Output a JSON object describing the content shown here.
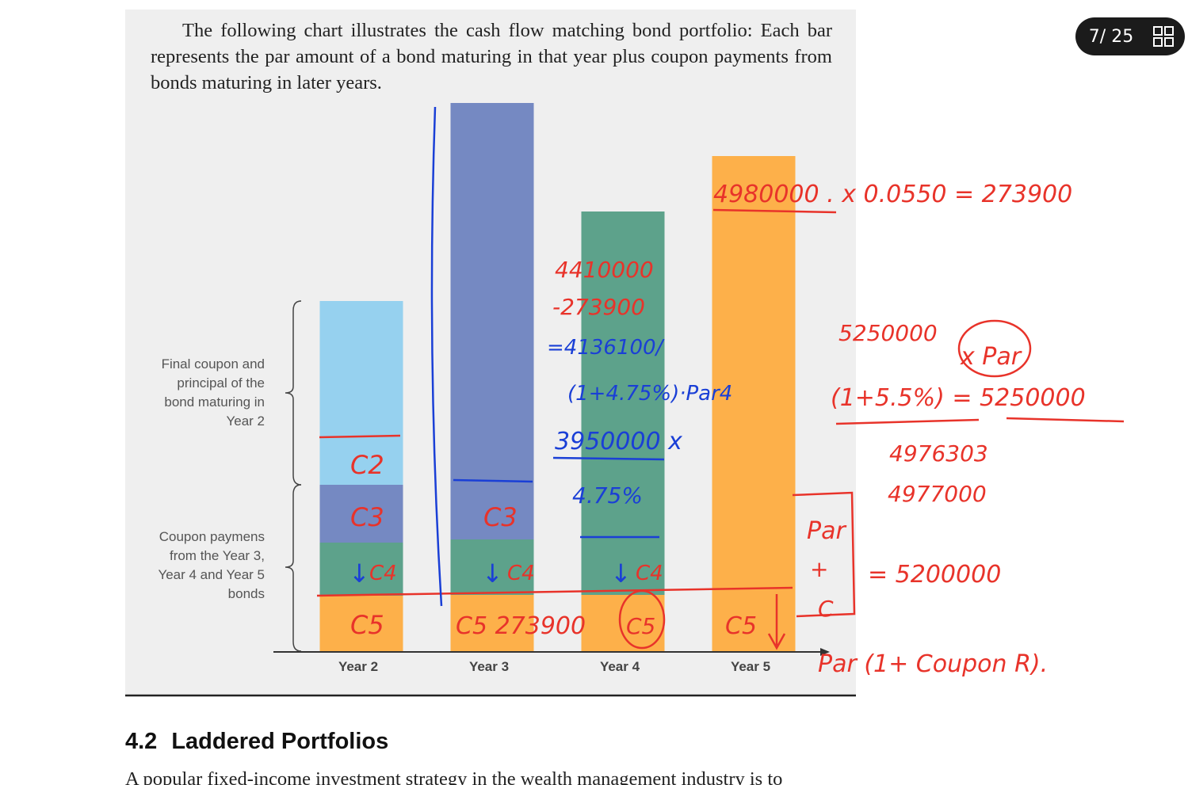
{
  "viewer": {
    "page_indicator": "7/ 25"
  },
  "chart_data": {
    "type": "bar",
    "stacked": true,
    "caption": "The following chart illustrates the cash flow matching bond portfolio: Each bar represents the par amount of a bond maturing in that year plus coupon payments from bonds maturing in later years.",
    "categories": [
      "Year 2",
      "Year 3",
      "Year 4",
      "Year 5"
    ],
    "series": [
      {
        "color": "#fdb04a",
        "values": [
          71,
          72,
          72,
          626
        ]
      },
      {
        "color": "#5da28b",
        "values": [
          67,
          70,
          484,
          null
        ]
      },
      {
        "color": "#7589c2",
        "values": [
          73,
          551,
          null,
          null
        ]
      },
      {
        "color": "#96d1ef",
        "values": [
          232,
          null,
          null,
          null
        ]
      }
    ],
    "brace_labels": [
      "Final coupon and principal of the bond maturing in Year 2",
      "Coupon paymens from the Year 3, Year 4 and Year 5 bonds"
    ],
    "handwriting": [
      {
        "text": "4980000 . x  0.0550 = 273900",
        "color": "#e8332a"
      },
      {
        "text": "4410000",
        "color": "#e8332a"
      },
      {
        "text": "-273900",
        "color": "#e8332a"
      },
      {
        "text": "=4136100/",
        "color": "#1a3fd6"
      },
      {
        "text": "(1+4.75%)·Par4",
        "color": "#1a3fd6"
      },
      {
        "text": "3950000 x",
        "color": "#1a3fd6"
      },
      {
        "text": "4.75%",
        "color": "#1a3fd6"
      },
      {
        "text": "5250000",
        "color": "#e8332a"
      },
      {
        "text": "x Par",
        "color": "#e8332a"
      },
      {
        "text": "(1+5.5%) = 5250000",
        "color": "#e8332a"
      },
      {
        "text": "4976303",
        "color": "#e8332a"
      },
      {
        "text": "4977000",
        "color": "#e8332a"
      },
      {
        "text": "Par",
        "color": "#e8332a"
      },
      {
        "text": "+",
        "color": "#e8332a"
      },
      {
        "text": "C",
        "color": "#e8332a"
      },
      {
        "text": "= 5200000",
        "color": "#e8332a"
      },
      {
        "text": "Par (1+ Coupon R).",
        "color": "#e8332a"
      },
      {
        "text": "C2",
        "color": "#e8332a"
      },
      {
        "text": "C3",
        "color": "#e8332a"
      },
      {
        "text": "↓",
        "color": "#1a3fd6"
      },
      {
        "text": "C4",
        "color": "#e8332a"
      },
      {
        "text": "C5",
        "color": "#e8332a"
      },
      {
        "text": "C3",
        "color": "#e8332a"
      },
      {
        "text": "↓",
        "color": "#1a3fd6"
      },
      {
        "text": "C4",
        "color": "#e8332a"
      },
      {
        "text": "C5 273900",
        "color": "#e8332a"
      },
      {
        "text": "C5",
        "color": "#e8332a"
      },
      {
        "text": "↓",
        "color": "#1a3fd6"
      },
      {
        "text": "C4",
        "color": "#e8332a"
      },
      {
        "text": "C5",
        "color": "#e8332a"
      }
    ]
  },
  "section": {
    "number": "4.2",
    "title": "Laddered Portfolios",
    "first_line": "A popular fixed-income investment strategy in the wealth management industry is to"
  }
}
